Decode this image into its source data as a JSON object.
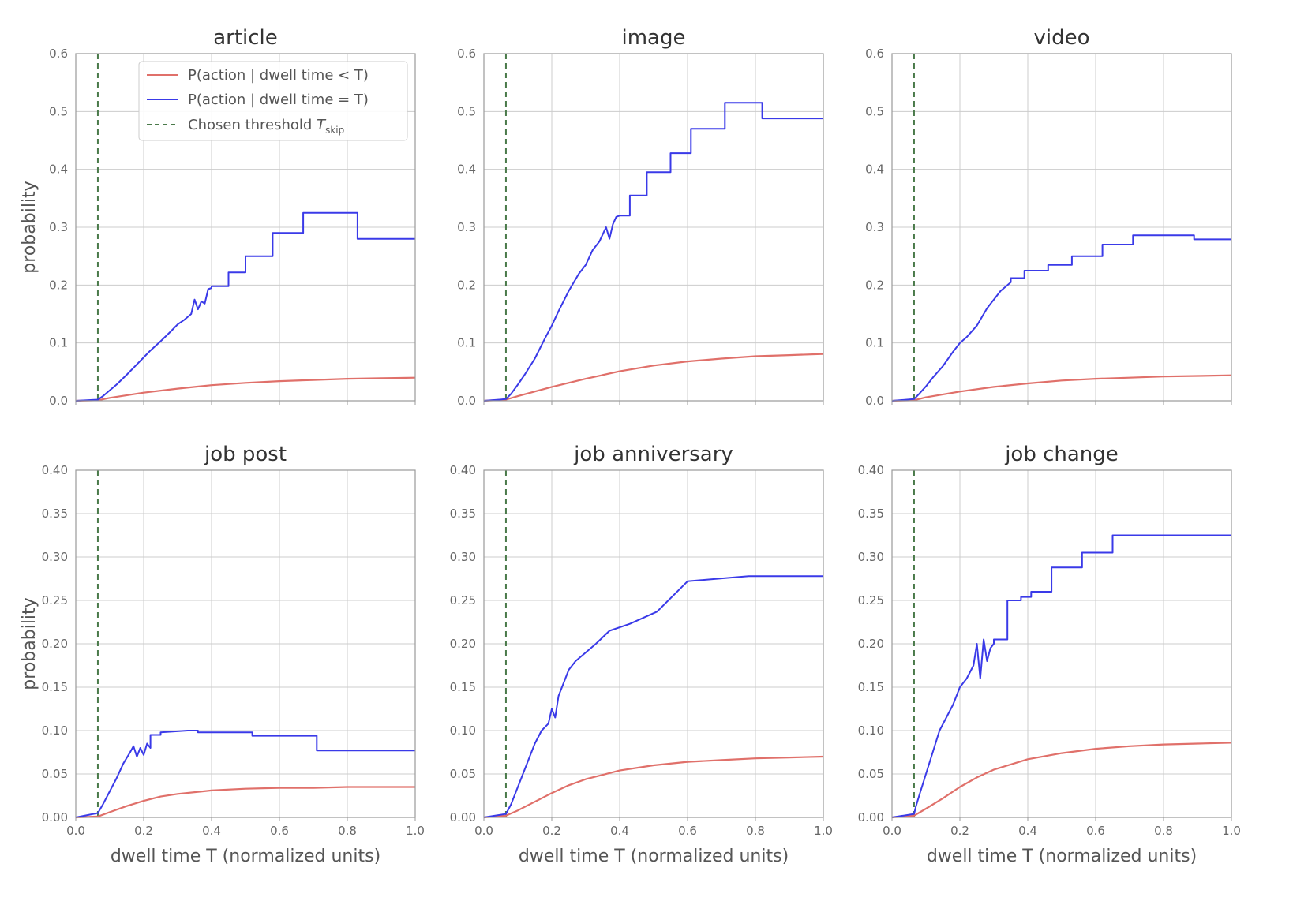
{
  "chart_data": [
    {
      "type": "line",
      "title": "article",
      "xlabel": "",
      "ylabel": "probability",
      "xlim": [
        0,
        1
      ],
      "ylim": [
        0,
        0.6
      ],
      "xticks": [
        0.0,
        0.2,
        0.4,
        0.6,
        0.8,
        1.0
      ],
      "yticks": [
        0.0,
        0.1,
        0.2,
        0.3,
        0.4,
        0.5,
        0.6
      ],
      "xtick_labels_visible": false,
      "grid": true,
      "legend": "top-right",
      "threshold": 0.065,
      "series": [
        {
          "name": "P(action | dwell time < T)",
          "color": "#e0706a",
          "x": [
            0,
            0.065,
            0.1,
            0.2,
            0.3,
            0.4,
            0.5,
            0.6,
            0.7,
            0.8,
            0.9,
            1.0
          ],
          "y": [
            0,
            0.001,
            0.005,
            0.014,
            0.021,
            0.027,
            0.031,
            0.034,
            0.036,
            0.038,
            0.039,
            0.04
          ]
        },
        {
          "name": "P(action | dwell time = T)",
          "color": "#3a3ae8",
          "x": [
            0,
            0.065,
            0.08,
            0.1,
            0.12,
            0.15,
            0.18,
            0.2,
            0.22,
            0.25,
            0.28,
            0.3,
            0.32,
            0.34,
            0.35,
            0.36,
            0.37,
            0.38,
            0.39,
            0.4,
            0.4,
            0.45,
            0.45,
            0.5,
            0.5,
            0.58,
            0.58,
            0.67,
            0.67,
            0.83,
            0.83,
            1.0
          ],
          "y": [
            0,
            0.002,
            0.008,
            0.018,
            0.028,
            0.045,
            0.063,
            0.075,
            0.087,
            0.103,
            0.12,
            0.132,
            0.14,
            0.15,
            0.175,
            0.158,
            0.172,
            0.168,
            0.193,
            0.195,
            0.198,
            0.198,
            0.222,
            0.222,
            0.25,
            0.25,
            0.29,
            0.29,
            0.325,
            0.325,
            0.28,
            0.28
          ]
        }
      ]
    },
    {
      "type": "line",
      "title": "image",
      "xlabel": "",
      "ylabel": "",
      "xlim": [
        0,
        1
      ],
      "ylim": [
        0,
        0.6
      ],
      "xticks": [
        0.0,
        0.2,
        0.4,
        0.6,
        0.8,
        1.0
      ],
      "yticks": [
        0.0,
        0.1,
        0.2,
        0.3,
        0.4,
        0.5,
        0.6
      ],
      "xtick_labels_visible": false,
      "grid": true,
      "threshold": 0.065,
      "series": [
        {
          "name": "P(action | dwell time < T)",
          "color": "#e0706a",
          "x": [
            0,
            0.065,
            0.1,
            0.2,
            0.3,
            0.4,
            0.5,
            0.6,
            0.7,
            0.8,
            0.9,
            1.0
          ],
          "y": [
            0,
            0.002,
            0.008,
            0.024,
            0.038,
            0.051,
            0.061,
            0.068,
            0.073,
            0.077,
            0.079,
            0.081
          ]
        },
        {
          "name": "P(action | dwell time = T)",
          "color": "#3a3ae8",
          "x": [
            0,
            0.065,
            0.08,
            0.1,
            0.12,
            0.15,
            0.18,
            0.2,
            0.22,
            0.25,
            0.28,
            0.3,
            0.32,
            0.34,
            0.36,
            0.37,
            0.38,
            0.39,
            0.4,
            0.4,
            0.43,
            0.43,
            0.48,
            0.48,
            0.55,
            0.55,
            0.61,
            0.61,
            0.71,
            0.71,
            0.82,
            0.82,
            1.0
          ],
          "y": [
            0,
            0.003,
            0.012,
            0.028,
            0.045,
            0.073,
            0.108,
            0.13,
            0.155,
            0.19,
            0.22,
            0.235,
            0.26,
            0.275,
            0.3,
            0.28,
            0.305,
            0.318,
            0.32,
            0.32,
            0.32,
            0.355,
            0.355,
            0.395,
            0.395,
            0.428,
            0.428,
            0.47,
            0.47,
            0.515,
            0.515,
            0.488,
            0.488
          ]
        }
      ]
    },
    {
      "type": "line",
      "title": "video",
      "xlabel": "",
      "ylabel": "",
      "xlim": [
        0,
        1
      ],
      "ylim": [
        0,
        0.6
      ],
      "xticks": [
        0.0,
        0.2,
        0.4,
        0.6,
        0.8,
        1.0
      ],
      "yticks": [
        0.0,
        0.1,
        0.2,
        0.3,
        0.4,
        0.5,
        0.6
      ],
      "xtick_labels_visible": false,
      "grid": true,
      "threshold": 0.065,
      "series": [
        {
          "name": "P(action | dwell time < T)",
          "color": "#e0706a",
          "x": [
            0,
            0.065,
            0.1,
            0.2,
            0.3,
            0.4,
            0.5,
            0.6,
            0.7,
            0.8,
            0.9,
            1.0
          ],
          "y": [
            0,
            0.001,
            0.006,
            0.016,
            0.024,
            0.03,
            0.035,
            0.038,
            0.04,
            0.042,
            0.043,
            0.044
          ]
        },
        {
          "name": "P(action | dwell time = T)",
          "color": "#3a3ae8",
          "x": [
            0,
            0.065,
            0.08,
            0.1,
            0.12,
            0.15,
            0.18,
            0.2,
            0.22,
            0.25,
            0.28,
            0.3,
            0.32,
            0.35,
            0.35,
            0.39,
            0.39,
            0.46,
            0.46,
            0.53,
            0.53,
            0.62,
            0.62,
            0.71,
            0.71,
            0.89,
            0.89,
            1.0
          ],
          "y": [
            0,
            0.003,
            0.012,
            0.025,
            0.04,
            0.06,
            0.085,
            0.1,
            0.11,
            0.13,
            0.16,
            0.175,
            0.19,
            0.205,
            0.212,
            0.212,
            0.225,
            0.225,
            0.235,
            0.235,
            0.25,
            0.25,
            0.27,
            0.27,
            0.286,
            0.286,
            0.279,
            0.279
          ]
        }
      ]
    },
    {
      "type": "line",
      "title": "job post",
      "xlabel": "dwell time T (normalized units)",
      "ylabel": "probability",
      "xlim": [
        0,
        1
      ],
      "ylim": [
        0,
        0.4
      ],
      "xticks": [
        0.0,
        0.2,
        0.4,
        0.6,
        0.8,
        1.0
      ],
      "yticks": [
        0.0,
        0.05,
        0.1,
        0.15,
        0.2,
        0.25,
        0.3,
        0.35,
        0.4
      ],
      "xtick_labels_visible": true,
      "grid": true,
      "threshold": 0.065,
      "series": [
        {
          "name": "P(action | dwell time < T)",
          "color": "#e0706a",
          "x": [
            0,
            0.065,
            0.1,
            0.15,
            0.2,
            0.25,
            0.3,
            0.4,
            0.5,
            0.6,
            0.7,
            0.8,
            0.9,
            1.0
          ],
          "y": [
            0,
            0.001,
            0.006,
            0.013,
            0.019,
            0.024,
            0.027,
            0.031,
            0.033,
            0.034,
            0.034,
            0.035,
            0.035,
            0.035
          ]
        },
        {
          "name": "P(action | dwell time = T)",
          "color": "#3a3ae8",
          "x": [
            0,
            0.065,
            0.08,
            0.1,
            0.12,
            0.14,
            0.16,
            0.17,
            0.18,
            0.19,
            0.2,
            0.21,
            0.22,
            0.22,
            0.25,
            0.25,
            0.33,
            0.36,
            0.36,
            0.52,
            0.52,
            0.71,
            0.71,
            1.0
          ],
          "y": [
            0,
            0.005,
            0.015,
            0.03,
            0.045,
            0.062,
            0.075,
            0.082,
            0.07,
            0.08,
            0.072,
            0.085,
            0.08,
            0.095,
            0.095,
            0.098,
            0.1,
            0.1,
            0.098,
            0.098,
            0.094,
            0.094,
            0.077,
            0.077
          ]
        }
      ]
    },
    {
      "type": "line",
      "title": "job anniversary",
      "xlabel": "dwell time T (normalized units)",
      "ylabel": "",
      "xlim": [
        0,
        1
      ],
      "ylim": [
        0,
        0.4
      ],
      "xticks": [
        0.0,
        0.2,
        0.4,
        0.6,
        0.8,
        1.0
      ],
      "yticks": [
        0.0,
        0.05,
        0.1,
        0.15,
        0.2,
        0.25,
        0.3,
        0.35,
        0.4
      ],
      "xtick_labels_visible": true,
      "grid": true,
      "threshold": 0.065,
      "series": [
        {
          "name": "P(action | dwell time < T)",
          "color": "#e0706a",
          "x": [
            0,
            0.065,
            0.1,
            0.15,
            0.2,
            0.25,
            0.3,
            0.4,
            0.5,
            0.6,
            0.7,
            0.8,
            0.9,
            1.0
          ],
          "y": [
            0,
            0.002,
            0.008,
            0.018,
            0.028,
            0.037,
            0.044,
            0.054,
            0.06,
            0.064,
            0.066,
            0.068,
            0.069,
            0.07
          ]
        },
        {
          "name": "P(action | dwell time = T)",
          "color": "#3a3ae8",
          "x": [
            0,
            0.065,
            0.08,
            0.1,
            0.12,
            0.15,
            0.17,
            0.19,
            0.2,
            0.21,
            0.22,
            0.23,
            0.25,
            0.27,
            0.3,
            0.3,
            0.33,
            0.33,
            0.37,
            0.37,
            0.43,
            0.43,
            0.51,
            0.51,
            0.6,
            0.6,
            0.78,
            0.78,
            1.0
          ],
          "y": [
            0,
            0.004,
            0.015,
            0.035,
            0.055,
            0.085,
            0.1,
            0.108,
            0.125,
            0.115,
            0.14,
            0.15,
            0.17,
            0.18,
            0.19,
            0.19,
            0.2,
            0.2,
            0.215,
            0.215,
            0.223,
            0.223,
            0.237,
            0.237,
            0.272,
            0.272,
            0.278,
            0.278,
            0.278
          ]
        }
      ]
    },
    {
      "type": "line",
      "title": "job change",
      "xlabel": "dwell time T (normalized units)",
      "ylabel": "",
      "xlim": [
        0,
        1
      ],
      "ylim": [
        0,
        0.4
      ],
      "xticks": [
        0.0,
        0.2,
        0.4,
        0.6,
        0.8,
        1.0
      ],
      "yticks": [
        0.0,
        0.05,
        0.1,
        0.15,
        0.2,
        0.25,
        0.3,
        0.35,
        0.4
      ],
      "xtick_labels_visible": true,
      "grid": true,
      "threshold": 0.065,
      "series": [
        {
          "name": "P(action | dwell time < T)",
          "color": "#e0706a",
          "x": [
            0,
            0.065,
            0.1,
            0.15,
            0.2,
            0.25,
            0.3,
            0.4,
            0.5,
            0.6,
            0.7,
            0.8,
            0.9,
            1.0
          ],
          "y": [
            0,
            0.002,
            0.01,
            0.022,
            0.035,
            0.046,
            0.055,
            0.067,
            0.074,
            0.079,
            0.082,
            0.084,
            0.085,
            0.086
          ]
        },
        {
          "name": "P(action | dwell time = T)",
          "color": "#3a3ae8",
          "x": [
            0,
            0.065,
            0.07,
            0.08,
            0.1,
            0.12,
            0.14,
            0.16,
            0.18,
            0.2,
            0.22,
            0.24,
            0.25,
            0.26,
            0.27,
            0.28,
            0.29,
            0.3,
            0.3,
            0.34,
            0.34,
            0.38,
            0.38,
            0.41,
            0.41,
            0.47,
            0.47,
            0.56,
            0.56,
            0.65,
            0.65,
            1.0
          ],
          "y": [
            0,
            0.004,
            0.012,
            0.025,
            0.05,
            0.075,
            0.1,
            0.115,
            0.13,
            0.15,
            0.16,
            0.175,
            0.2,
            0.16,
            0.205,
            0.18,
            0.195,
            0.2,
            0.205,
            0.205,
            0.25,
            0.25,
            0.254,
            0.254,
            0.26,
            0.26,
            0.288,
            0.288,
            0.305,
            0.305,
            0.325,
            0.325
          ]
        }
      ]
    }
  ],
  "legend": {
    "items": [
      {
        "label": "P(action | dwell time < T)",
        "color": "#e0706a",
        "style": "solid"
      },
      {
        "label": "P(action | dwell time = T)",
        "color": "#3a3ae8",
        "style": "solid"
      },
      {
        "label": "Chosen threshold ",
        "sub_symbol": "T",
        "sub_index": "skip",
        "color": "#4a7a4a",
        "style": "dashed"
      }
    ]
  },
  "colors": {
    "threshold": "#4a7a4a",
    "grid": "#cccccc"
  }
}
